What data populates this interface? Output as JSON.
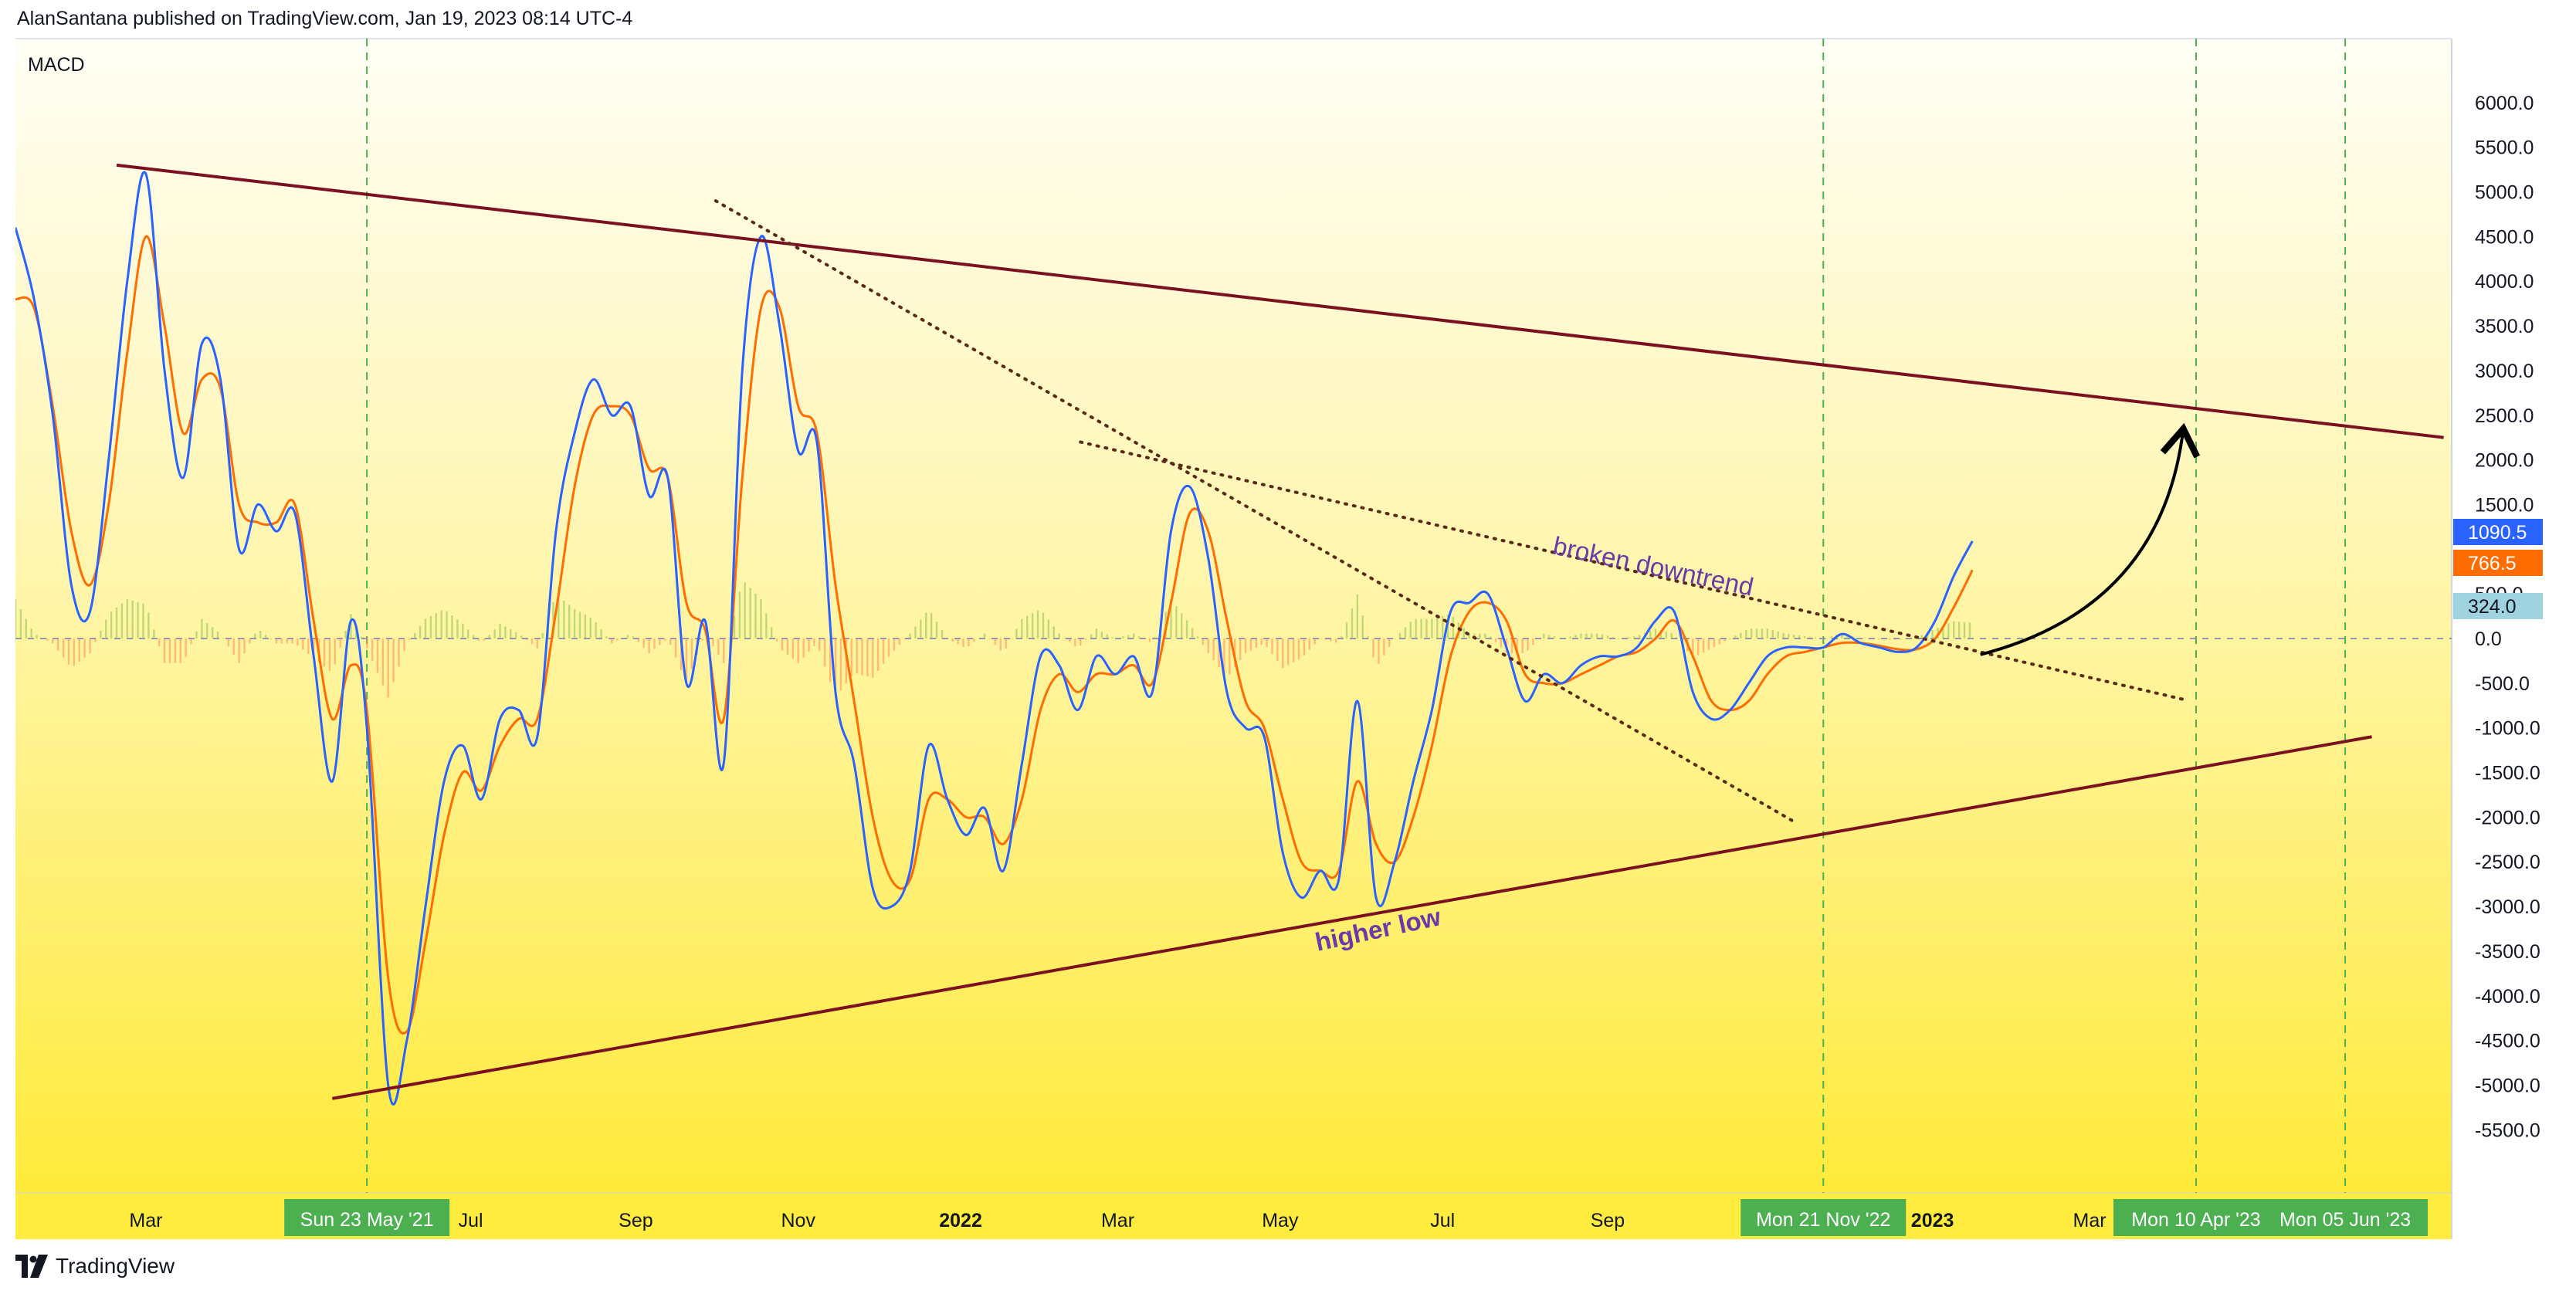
{
  "header": {
    "published_by": "AlanSantana published on TradingView.com, Jan 19, 2023 08:14 UTC-4"
  },
  "indicator_label": "MACD",
  "brand": {
    "name": "TradingView",
    "logo_icon": "tradingview-logo-icon"
  },
  "colors": {
    "macd_line": "#2962ff",
    "signal_line": "#ff6d00",
    "hist_pos": "#8bc34a",
    "hist_neg": "#ff8a50",
    "trendline": "#7a1020",
    "dotted_trend": "#5a2a14",
    "annotation": "#6a3aa8",
    "date_badge": "#4caf50",
    "badge_macd": "#2962ff",
    "badge_signal": "#ff6d00",
    "badge_hist": "#9fd3e0"
  },
  "chart_data": {
    "type": "line",
    "x_axis": {
      "ticks": [
        {
          "label": "Mar",
          "date": "2021-03-01",
          "bold": false
        },
        {
          "label": "Jul",
          "date": "2021-07-01",
          "bold": false
        },
        {
          "label": "Sep",
          "date": "2021-09-01",
          "bold": false
        },
        {
          "label": "Nov",
          "date": "2021-11-01",
          "bold": false
        },
        {
          "label": "2022",
          "date": "2022-01-01",
          "bold": true
        },
        {
          "label": "Mar",
          "date": "2022-03-01",
          "bold": false
        },
        {
          "label": "May",
          "date": "2022-05-01",
          "bold": false
        },
        {
          "label": "Jul",
          "date": "2022-07-01",
          "bold": false
        },
        {
          "label": "Sep",
          "date": "2022-09-01",
          "bold": false
        },
        {
          "label": "2023",
          "date": "2023-01-01",
          "bold": true
        },
        {
          "label": "Mar",
          "date": "2023-03-01",
          "bold": false
        }
      ],
      "range": [
        "2021-01-11",
        "2023-07-15"
      ],
      "date_badges": [
        {
          "label": "Sun 23 May '21",
          "date": "2021-05-23"
        },
        {
          "label": "Mon 21 Nov '22",
          "date": "2022-11-21"
        },
        {
          "label": "Mon 10 Apr '23",
          "date": "2023-04-10"
        },
        {
          "label": "Mon 05 Jun '23",
          "date": "2023-06-05"
        }
      ]
    },
    "y_axis": {
      "range": [
        -5700,
        6000
      ],
      "ticks": [
        6000.0,
        5500.0,
        5000.0,
        4500.0,
        4000.0,
        3500.0,
        3000.0,
        2500.0,
        2000.0,
        1500.0,
        500.0,
        0.0,
        -500.0,
        -1000.0,
        -1500.0,
        -2000.0,
        -2500.0,
        -3000.0,
        -3500.0,
        -4000.0,
        -4500.0,
        -5000.0,
        -5500.0
      ],
      "tick_labels": [
        "6000.0",
        "5500.0",
        "5000.0",
        "4500.0",
        "4000.0",
        "3500.0",
        "3000.0",
        "2500.0",
        "2000.0",
        "1500.0",
        "500.0",
        "0.0",
        "-500.0",
        "-1000.0",
        "-1500.0",
        "-2000.0",
        "-2500.0",
        "-3000.0",
        "-3500.0",
        "-4000.0",
        "-4500.0",
        "-5000.0",
        "-5500.0"
      ]
    },
    "value_badges": [
      {
        "label": "1090.5",
        "value": 1090.5,
        "series": "macd"
      },
      {
        "label": "766.5",
        "value": 766.5,
        "series": "signal"
      },
      {
        "label": "324.0",
        "value": 324.0,
        "series": "histogram"
      }
    ],
    "macd_points": [
      [
        "2021-01-11",
        4600
      ],
      [
        "2021-01-18",
        3800
      ],
      [
        "2021-01-25",
        2500
      ],
      [
        "2021-02-01",
        600
      ],
      [
        "2021-02-08",
        300
      ],
      [
        "2021-02-15",
        2000
      ],
      [
        "2021-02-22",
        4000
      ],
      [
        "2021-03-01",
        5200
      ],
      [
        "2021-03-08",
        3000
      ],
      [
        "2021-03-15",
        1800
      ],
      [
        "2021-03-22",
        3300
      ],
      [
        "2021-03-29",
        2900
      ],
      [
        "2021-04-05",
        1000
      ],
      [
        "2021-04-12",
        1500
      ],
      [
        "2021-04-19",
        1200
      ],
      [
        "2021-04-26",
        1400
      ],
      [
        "2021-05-03",
        -200
      ],
      [
        "2021-05-10",
        -1600
      ],
      [
        "2021-05-17",
        200
      ],
      [
        "2021-05-23",
        -1000
      ],
      [
        "2021-05-31",
        -5000
      ],
      [
        "2021-06-07",
        -4500
      ],
      [
        "2021-06-14",
        -3000
      ],
      [
        "2021-06-21",
        -1600
      ],
      [
        "2021-06-28",
        -1200
      ],
      [
        "2021-07-05",
        -1800
      ],
      [
        "2021-07-12",
        -900
      ],
      [
        "2021-07-19",
        -800
      ],
      [
        "2021-07-26",
        -1100
      ],
      [
        "2021-08-02",
        1200
      ],
      [
        "2021-08-09",
        2300
      ],
      [
        "2021-08-16",
        2900
      ],
      [
        "2021-08-23",
        2500
      ],
      [
        "2021-08-30",
        2600
      ],
      [
        "2021-09-06",
        1600
      ],
      [
        "2021-09-13",
        1800
      ],
      [
        "2021-09-20",
        -500
      ],
      [
        "2021-09-27",
        200
      ],
      [
        "2021-10-04",
        -1400
      ],
      [
        "2021-10-11",
        3000
      ],
      [
        "2021-10-18",
        4500
      ],
      [
        "2021-10-25",
        3500
      ],
      [
        "2021-11-01",
        2100
      ],
      [
        "2021-11-08",
        2200
      ],
      [
        "2021-11-15",
        -600
      ],
      [
        "2021-11-22",
        -1400
      ],
      [
        "2021-11-29",
        -2800
      ],
      [
        "2021-12-06",
        -3000
      ],
      [
        "2021-12-13",
        -2600
      ],
      [
        "2021-12-20",
        -1200
      ],
      [
        "2021-12-27",
        -1800
      ],
      [
        "2022-01-03",
        -2200
      ],
      [
        "2022-01-10",
        -1900
      ],
      [
        "2022-01-17",
        -2600
      ],
      [
        "2022-01-24",
        -1400
      ],
      [
        "2022-01-31",
        -200
      ],
      [
        "2022-02-07",
        -300
      ],
      [
        "2022-02-14",
        -800
      ],
      [
        "2022-02-21",
        -200
      ],
      [
        "2022-02-28",
        -400
      ],
      [
        "2022-03-07",
        -200
      ],
      [
        "2022-03-14",
        -600
      ],
      [
        "2022-03-21",
        1200
      ],
      [
        "2022-03-28",
        1700
      ],
      [
        "2022-04-04",
        900
      ],
      [
        "2022-04-11",
        -600
      ],
      [
        "2022-04-18",
        -1000
      ],
      [
        "2022-04-25",
        -1100
      ],
      [
        "2022-05-02",
        -2400
      ],
      [
        "2022-05-09",
        -2900
      ],
      [
        "2022-05-16",
        -2600
      ],
      [
        "2022-05-23",
        -2700
      ],
      [
        "2022-05-30",
        -700
      ],
      [
        "2022-06-06",
        -2900
      ],
      [
        "2022-06-13",
        -2500
      ],
      [
        "2022-06-20",
        -1600
      ],
      [
        "2022-06-27",
        -800
      ],
      [
        "2022-07-04",
        300
      ],
      [
        "2022-07-11",
        400
      ],
      [
        "2022-07-18",
        500
      ],
      [
        "2022-07-25",
        -100
      ],
      [
        "2022-08-01",
        -700
      ],
      [
        "2022-08-08",
        -400
      ],
      [
        "2022-08-15",
        -500
      ],
      [
        "2022-08-22",
        -300
      ],
      [
        "2022-08-29",
        -200
      ],
      [
        "2022-09-05",
        -200
      ],
      [
        "2022-09-12",
        -100
      ],
      [
        "2022-09-19",
        200
      ],
      [
        "2022-09-26",
        300
      ],
      [
        "2022-10-03",
        -600
      ],
      [
        "2022-10-10",
        -900
      ],
      [
        "2022-10-17",
        -800
      ],
      [
        "2022-10-24",
        -500
      ],
      [
        "2022-10-31",
        -200
      ],
      [
        "2022-11-07",
        -100
      ],
      [
        "2022-11-14",
        -100
      ],
      [
        "2022-11-21",
        -100
      ],
      [
        "2022-11-28",
        50
      ],
      [
        "2022-12-05",
        -50
      ],
      [
        "2022-12-12",
        -100
      ],
      [
        "2022-12-19",
        -150
      ],
      [
        "2022-12-26",
        -100
      ],
      [
        "2023-01-02",
        200
      ],
      [
        "2023-01-09",
        700
      ],
      [
        "2023-01-16",
        1090.5
      ]
    ],
    "signal_points": [
      [
        "2021-01-11",
        3800
      ],
      [
        "2021-01-18",
        3700
      ],
      [
        "2021-01-25",
        2600
      ],
      [
        "2021-02-01",
        1200
      ],
      [
        "2021-02-08",
        600
      ],
      [
        "2021-02-15",
        1500
      ],
      [
        "2021-02-22",
        3200
      ],
      [
        "2021-03-01",
        4500
      ],
      [
        "2021-03-08",
        3500
      ],
      [
        "2021-03-15",
        2300
      ],
      [
        "2021-03-22",
        2900
      ],
      [
        "2021-03-29",
        2800
      ],
      [
        "2021-04-05",
        1500
      ],
      [
        "2021-04-12",
        1300
      ],
      [
        "2021-04-19",
        1300
      ],
      [
        "2021-04-26",
        1500
      ],
      [
        "2021-05-03",
        200
      ],
      [
        "2021-05-10",
        -900
      ],
      [
        "2021-05-17",
        -300
      ],
      [
        "2021-05-23",
        -800
      ],
      [
        "2021-05-31",
        -3800
      ],
      [
        "2021-06-07",
        -4400
      ],
      [
        "2021-06-14",
        -3400
      ],
      [
        "2021-06-21",
        -2200
      ],
      [
        "2021-06-28",
        -1500
      ],
      [
        "2021-07-05",
        -1700
      ],
      [
        "2021-07-12",
        -1200
      ],
      [
        "2021-07-19",
        -900
      ],
      [
        "2021-07-26",
        -900
      ],
      [
        "2021-08-02",
        300
      ],
      [
        "2021-08-09",
        1700
      ],
      [
        "2021-08-16",
        2500
      ],
      [
        "2021-08-23",
        2600
      ],
      [
        "2021-08-30",
        2500
      ],
      [
        "2021-09-06",
        1900
      ],
      [
        "2021-09-13",
        1800
      ],
      [
        "2021-09-20",
        400
      ],
      [
        "2021-09-27",
        100
      ],
      [
        "2021-10-04",
        -900
      ],
      [
        "2021-10-11",
        1800
      ],
      [
        "2021-10-18",
        3700
      ],
      [
        "2021-10-25",
        3700
      ],
      [
        "2021-11-01",
        2600
      ],
      [
        "2021-11-08",
        2300
      ],
      [
        "2021-11-15",
        600
      ],
      [
        "2021-11-22",
        -700
      ],
      [
        "2021-11-29",
        -2000
      ],
      [
        "2021-12-06",
        -2700
      ],
      [
        "2021-12-13",
        -2700
      ],
      [
        "2021-12-20",
        -1800
      ],
      [
        "2021-12-27",
        -1800
      ],
      [
        "2022-01-03",
        -2000
      ],
      [
        "2022-01-10",
        -2000
      ],
      [
        "2022-01-17",
        -2300
      ],
      [
        "2022-01-24",
        -1800
      ],
      [
        "2022-01-31",
        -800
      ],
      [
        "2022-02-07",
        -400
      ],
      [
        "2022-02-14",
        -600
      ],
      [
        "2022-02-21",
        -400
      ],
      [
        "2022-02-28",
        -400
      ],
      [
        "2022-03-07",
        -300
      ],
      [
        "2022-03-14",
        -500
      ],
      [
        "2022-03-21",
        400
      ],
      [
        "2022-03-28",
        1400
      ],
      [
        "2022-04-04",
        1200
      ],
      [
        "2022-04-11",
        200
      ],
      [
        "2022-04-18",
        -700
      ],
      [
        "2022-04-25",
        -1000
      ],
      [
        "2022-05-02",
        -1800
      ],
      [
        "2022-05-09",
        -2500
      ],
      [
        "2022-05-16",
        -2600
      ],
      [
        "2022-05-23",
        -2600
      ],
      [
        "2022-05-30",
        -1600
      ],
      [
        "2022-06-06",
        -2300
      ],
      [
        "2022-06-13",
        -2500
      ],
      [
        "2022-06-20",
        -2000
      ],
      [
        "2022-06-27",
        -1200
      ],
      [
        "2022-07-04",
        -200
      ],
      [
        "2022-07-11",
        300
      ],
      [
        "2022-07-18",
        400
      ],
      [
        "2022-07-25",
        200
      ],
      [
        "2022-08-01",
        -400
      ],
      [
        "2022-08-08",
        -500
      ],
      [
        "2022-08-15",
        -500
      ],
      [
        "2022-08-22",
        -400
      ],
      [
        "2022-08-29",
        -300
      ],
      [
        "2022-09-05",
        -200
      ],
      [
        "2022-09-12",
        -150
      ],
      [
        "2022-09-19",
        0
      ],
      [
        "2022-09-26",
        200
      ],
      [
        "2022-10-03",
        -200
      ],
      [
        "2022-10-10",
        -700
      ],
      [
        "2022-10-17",
        -800
      ],
      [
        "2022-10-24",
        -700
      ],
      [
        "2022-10-31",
        -400
      ],
      [
        "2022-11-07",
        -200
      ],
      [
        "2022-11-14",
        -150
      ],
      [
        "2022-11-21",
        -100
      ],
      [
        "2022-11-28",
        -50
      ],
      [
        "2022-12-05",
        -50
      ],
      [
        "2022-12-12",
        -80
      ],
      [
        "2022-12-19",
        -120
      ],
      [
        "2022-12-26",
        -120
      ],
      [
        "2023-01-02",
        0
      ],
      [
        "2023-01-09",
        350
      ],
      [
        "2023-01-16",
        766.5
      ]
    ],
    "trendlines": [
      {
        "name": "upper-resistance",
        "style": "solid",
        "points": [
          [
            "2021-02-18",
            5300
          ],
          [
            "2023-07-12",
            2250
          ]
        ]
      },
      {
        "name": "lower-support",
        "style": "solid",
        "points": [
          [
            "2021-05-10",
            -5150
          ],
          [
            "2023-06-15",
            -1100
          ]
        ]
      },
      {
        "name": "steep-downtrend",
        "style": "dotted",
        "points": [
          [
            "2021-10-01",
            4900
          ],
          [
            "2022-11-10",
            -2050
          ]
        ]
      },
      {
        "name": "broken-downtrend",
        "style": "dotted",
        "points": [
          [
            "2022-02-15",
            2200
          ],
          [
            "2023-04-05",
            -680
          ]
        ]
      }
    ],
    "annotations": [
      {
        "text": "broken downtrend",
        "date": "2022-08-11",
        "value": 950,
        "rotate": 12
      },
      {
        "text": "higher low",
        "date": "2022-05-15",
        "value": -3500,
        "rotate": -12
      }
    ],
    "arrow": {
      "from": [
        "2023-01-19",
        -180
      ],
      "to": [
        "2023-04-05",
        2300
      ]
    }
  }
}
